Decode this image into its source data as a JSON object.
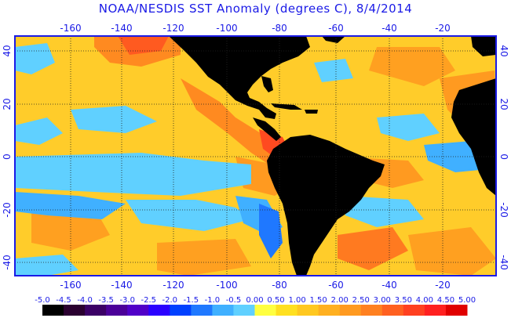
{
  "title": "NOAA/NESDIS SST Anomaly (degrees C), 8/4/2014",
  "axes": {
    "lon_ticks": [
      "-160",
      "-140",
      "-120",
      "-100",
      "-80",
      "-60",
      "-40",
      "-20"
    ],
    "lat_ticks": [
      "40",
      "20",
      "0",
      "-20",
      "-40"
    ]
  },
  "colorbar": {
    "labels": [
      "-5.0",
      "-4.5",
      "-4.0",
      "-3.5",
      "-3.0",
      "-2.5",
      "-2.0",
      "-1.5",
      "-1.0",
      "-0.5",
      "0.00",
      "0.50",
      "1.00",
      "1.50",
      "2.00",
      "2.50",
      "3.00",
      "3.50",
      "4.00",
      "4.50",
      "5.00"
    ],
    "colors": [
      "#000000",
      "#2a0030",
      "#3b0066",
      "#4b0099",
      "#5000c8",
      "#2a00ff",
      "#0040ff",
      "#1f78ff",
      "#40b0ff",
      "#60d0ff",
      "#ffff40",
      "#ffe020",
      "#ffc820",
      "#ffb020",
      "#ff9a20",
      "#ff8020",
      "#ff6020",
      "#ff4020",
      "#ff2020",
      "#e00000"
    ]
  },
  "colors": {
    "ocean_base": "#ffcc2a",
    "land": "#000000",
    "frame": "#1a1ae6",
    "cool": "#40b0ff",
    "warm": "#ff8020"
  }
}
